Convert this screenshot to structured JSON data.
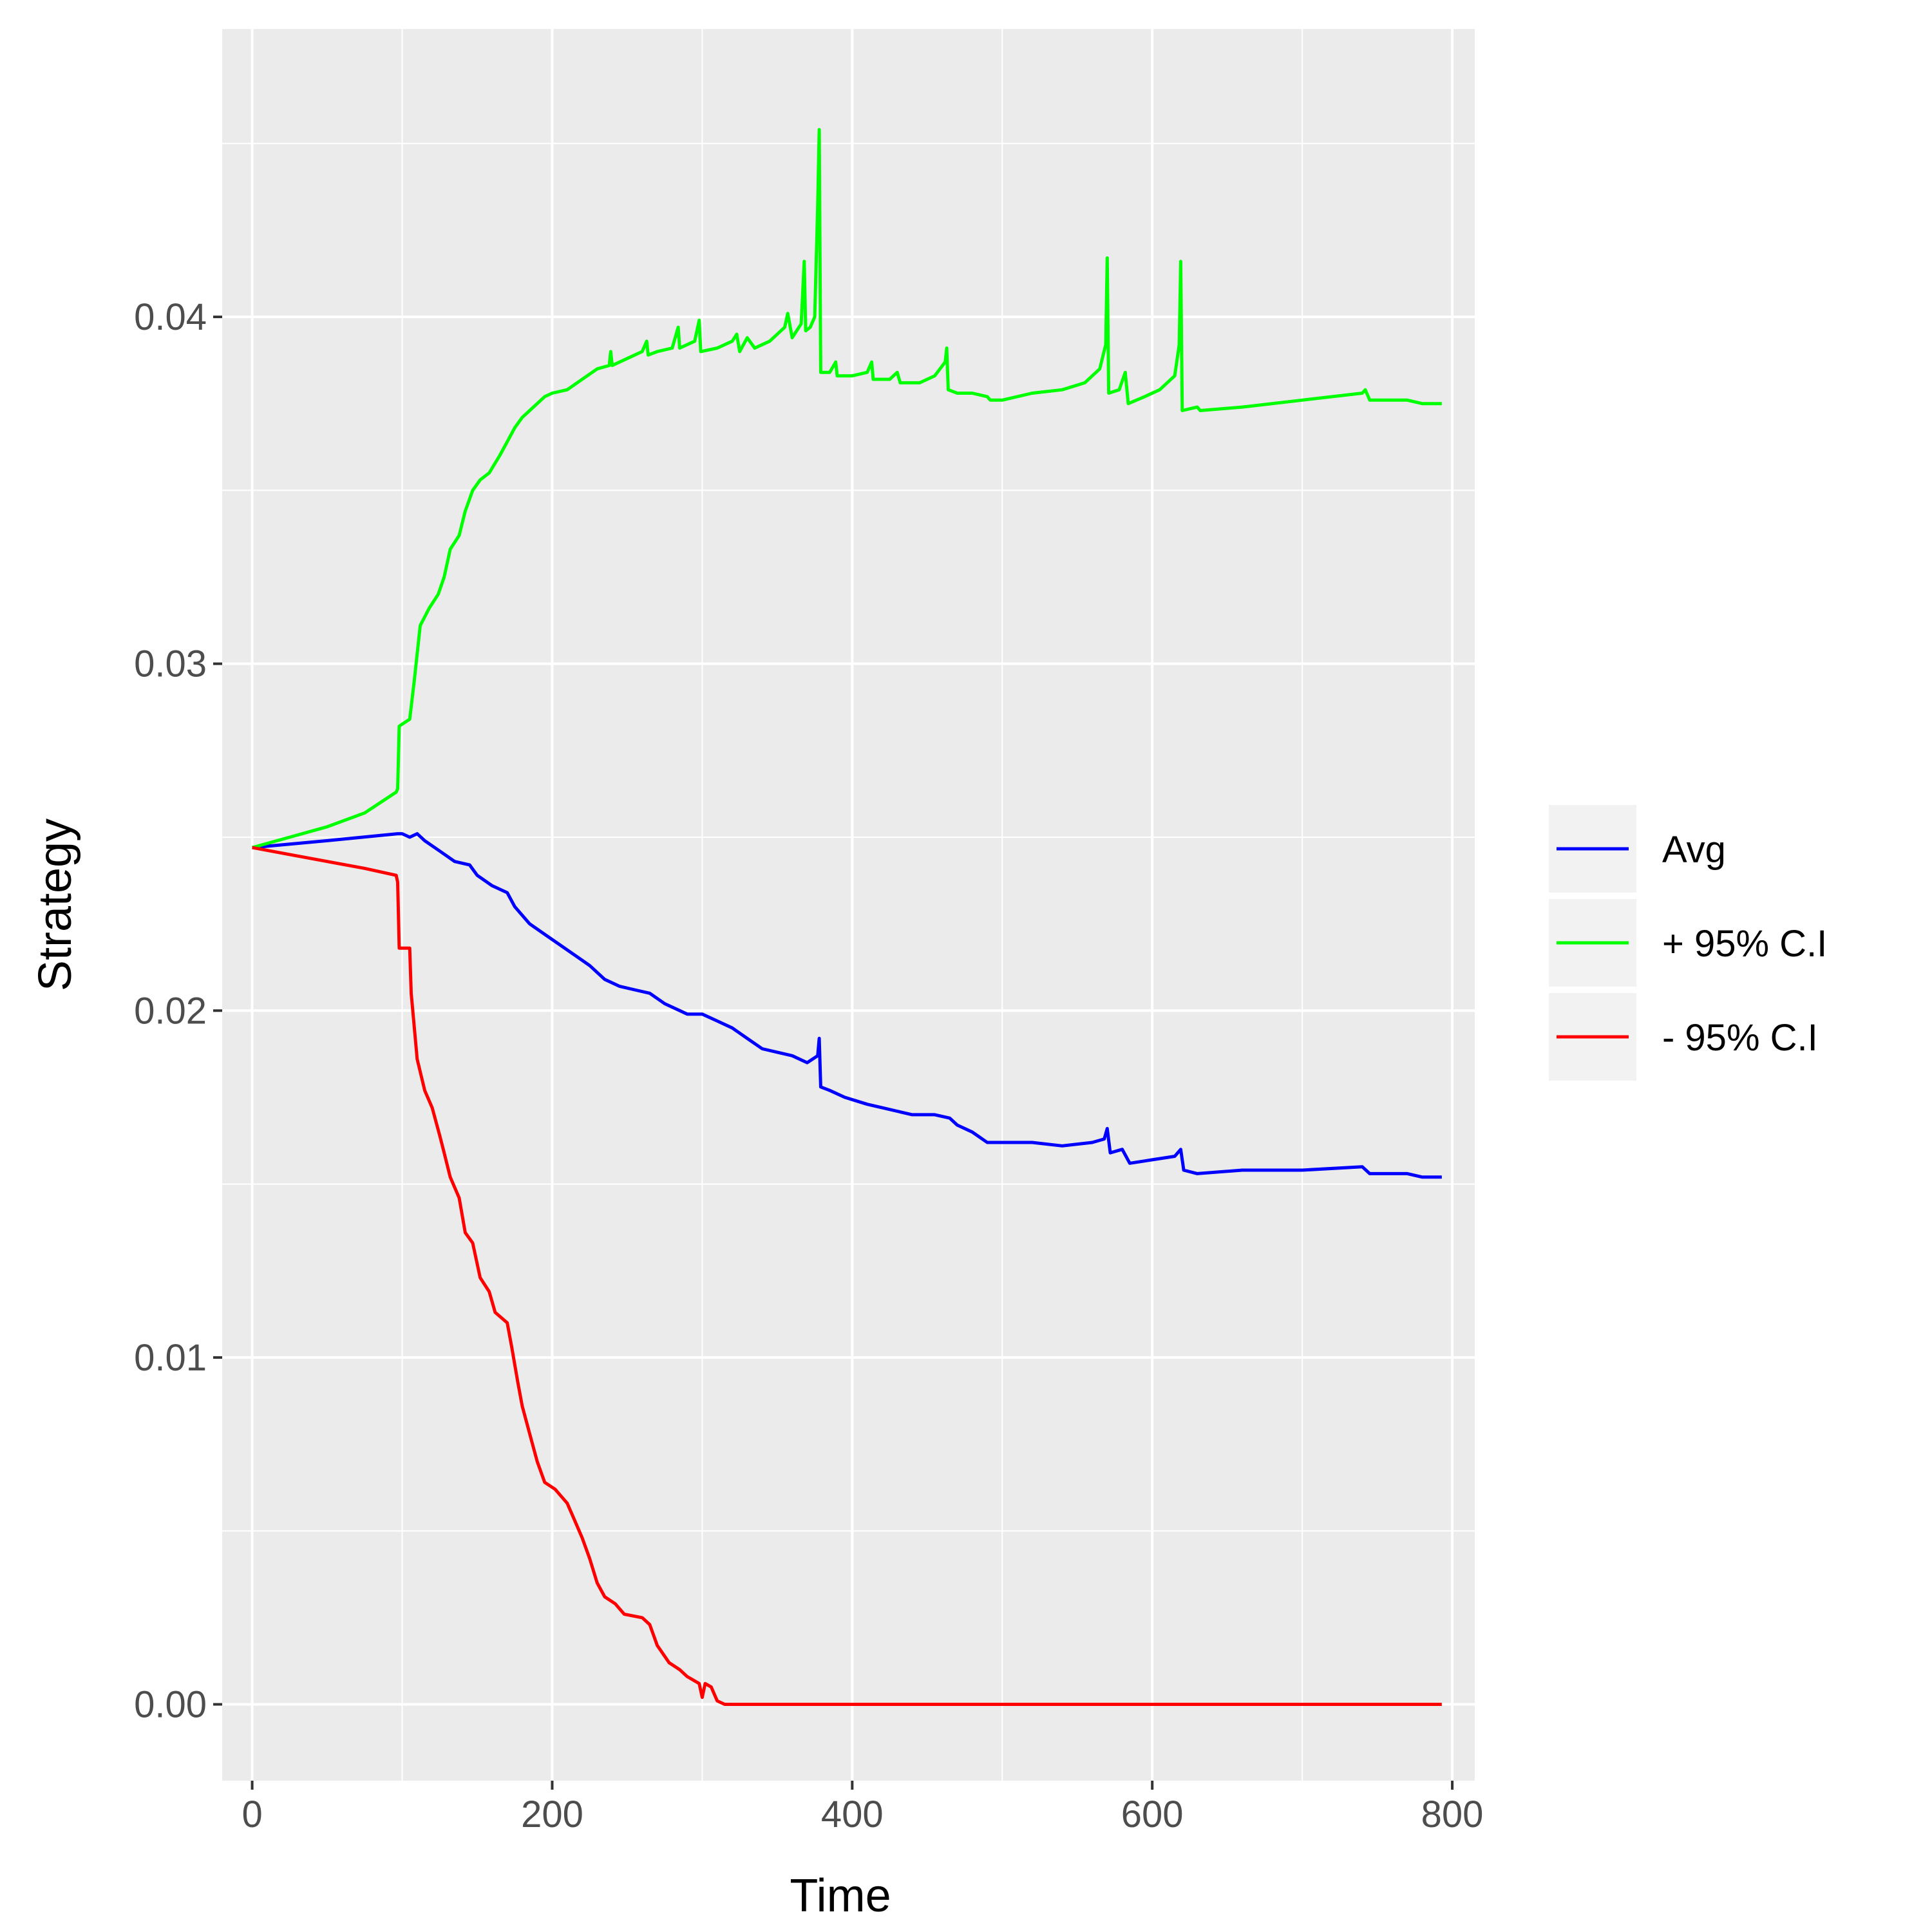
{
  "chart_data": {
    "type": "line",
    "title": "",
    "xlabel": "Time",
    "ylabel": "Strategy",
    "xlim": [
      -20,
      815
    ],
    "ylim": [
      -0.0022,
      0.0483
    ],
    "x_ticks": [
      0,
      200,
      400,
      600,
      800
    ],
    "x_tick_labels": [
      "0",
      "200",
      "400",
      "600",
      "800"
    ],
    "y_ticks": [
      0.0,
      0.01,
      0.02,
      0.03,
      0.04
    ],
    "y_tick_labels": [
      "0.00",
      "0.01",
      "0.02",
      "0.03",
      "0.04"
    ],
    "grid": true,
    "legend_position": "right",
    "background": "#ebebeb",
    "series": [
      {
        "name": "Avg",
        "color": "#0000ff",
        "points": [
          [
            0,
            0.0247
          ],
          [
            50,
            0.0249
          ],
          [
            97,
            0.0251
          ],
          [
            100,
            0.0251
          ],
          [
            105,
            0.025
          ],
          [
            110,
            0.0251
          ],
          [
            115,
            0.0249
          ],
          [
            125,
            0.0246
          ],
          [
            135,
            0.0243
          ],
          [
            145,
            0.0242
          ],
          [
            150,
            0.0239
          ],
          [
            160,
            0.0236
          ],
          [
            170,
            0.0234
          ],
          [
            175,
            0.023
          ],
          [
            185,
            0.0225
          ],
          [
            195,
            0.0222
          ],
          [
            205,
            0.0219
          ],
          [
            215,
            0.0216
          ],
          [
            225,
            0.0213
          ],
          [
            235,
            0.0209
          ],
          [
            245,
            0.0207
          ],
          [
            255,
            0.0206
          ],
          [
            265,
            0.0205
          ],
          [
            275,
            0.0202
          ],
          [
            290,
            0.0199
          ],
          [
            300,
            0.0199
          ],
          [
            310,
            0.0197
          ],
          [
            320,
            0.0195
          ],
          [
            330,
            0.0192
          ],
          [
            340,
            0.0189
          ],
          [
            350,
            0.0188
          ],
          [
            360,
            0.0187
          ],
          [
            370,
            0.0185
          ],
          [
            377,
            0.0187
          ],
          [
            378,
            0.0192
          ],
          [
            379,
            0.0178
          ],
          [
            385,
            0.0177
          ],
          [
            395,
            0.0175
          ],
          [
            410,
            0.0173
          ],
          [
            420,
            0.0172
          ],
          [
            430,
            0.0171
          ],
          [
            440,
            0.017
          ],
          [
            455,
            0.017
          ],
          [
            465,
            0.0169
          ],
          [
            470,
            0.0167
          ],
          [
            480,
            0.0165
          ],
          [
            490,
            0.0162
          ],
          [
            500,
            0.0162
          ],
          [
            520,
            0.0162
          ],
          [
            540,
            0.0161
          ],
          [
            560,
            0.0162
          ],
          [
            568,
            0.0163
          ],
          [
            570,
            0.0166
          ],
          [
            572,
            0.0159
          ],
          [
            580,
            0.016
          ],
          [
            585,
            0.0156
          ],
          [
            600,
            0.0157
          ],
          [
            615,
            0.0158
          ],
          [
            619,
            0.016
          ],
          [
            621,
            0.0154
          ],
          [
            630,
            0.0153
          ],
          [
            660,
            0.0154
          ],
          [
            700,
            0.0154
          ],
          [
            740,
            0.0155
          ],
          [
            745,
            0.0153
          ],
          [
            770,
            0.0153
          ],
          [
            780,
            0.0152
          ],
          [
            793,
            0.0152
          ]
        ]
      },
      {
        "name": "+ 95% C.I",
        "color": "#00ff00",
        "points": [
          [
            0,
            0.0247
          ],
          [
            25,
            0.025
          ],
          [
            50,
            0.0253
          ],
          [
            75,
            0.0257
          ],
          [
            96,
            0.0263
          ],
          [
            97,
            0.0264
          ],
          [
            98,
            0.0282
          ],
          [
            105,
            0.0284
          ],
          [
            108,
            0.0295
          ],
          [
            112,
            0.0311
          ],
          [
            118,
            0.0316
          ],
          [
            124,
            0.032
          ],
          [
            128,
            0.0325
          ],
          [
            132,
            0.0333
          ],
          [
            138,
            0.0337
          ],
          [
            142,
            0.0344
          ],
          [
            147,
            0.035
          ],
          [
            152,
            0.0353
          ],
          [
            158,
            0.0355
          ],
          [
            165,
            0.036
          ],
          [
            170,
            0.0364
          ],
          [
            175,
            0.0368
          ],
          [
            180,
            0.0371
          ],
          [
            185,
            0.0373
          ],
          [
            190,
            0.0375
          ],
          [
            195,
            0.0377
          ],
          [
            200,
            0.0378
          ],
          [
            210,
            0.0379
          ],
          [
            220,
            0.0382
          ],
          [
            230,
            0.0385
          ],
          [
            238,
            0.0386
          ],
          [
            239,
            0.039
          ],
          [
            240,
            0.0386
          ],
          [
            250,
            0.0388
          ],
          [
            260,
            0.039
          ],
          [
            263,
            0.0393
          ],
          [
            264,
            0.0389
          ],
          [
            270,
            0.039
          ],
          [
            280,
            0.0391
          ],
          [
            284,
            0.0397
          ],
          [
            285,
            0.0391
          ],
          [
            295,
            0.0393
          ],
          [
            298,
            0.0399
          ],
          [
            299,
            0.039
          ],
          [
            310,
            0.0391
          ],
          [
            320,
            0.0393
          ],
          [
            323,
            0.0395
          ],
          [
            325,
            0.039
          ],
          [
            330,
            0.0394
          ],
          [
            335,
            0.0391
          ],
          [
            345,
            0.0393
          ],
          [
            355,
            0.0397
          ],
          [
            357,
            0.0401
          ],
          [
            360,
            0.0394
          ],
          [
            366,
            0.0398
          ],
          [
            368,
            0.0416
          ],
          [
            369,
            0.0396
          ],
          [
            372,
            0.0397
          ],
          [
            375,
            0.04
          ],
          [
            377,
            0.0432
          ],
          [
            378,
            0.0454
          ],
          [
            379,
            0.0384
          ],
          [
            385,
            0.0384
          ],
          [
            389,
            0.0387
          ],
          [
            390,
            0.0383
          ],
          [
            400,
            0.0383
          ],
          [
            410,
            0.0384
          ],
          [
            413,
            0.0387
          ],
          [
            414,
            0.0382
          ],
          [
            425,
            0.0382
          ],
          [
            430,
            0.0384
          ],
          [
            432,
            0.0381
          ],
          [
            445,
            0.0381
          ],
          [
            455,
            0.0383
          ],
          [
            462,
            0.0387
          ],
          [
            463,
            0.0391
          ],
          [
            464,
            0.0379
          ],
          [
            470,
            0.0378
          ],
          [
            480,
            0.0378
          ],
          [
            490,
            0.0377
          ],
          [
            492,
            0.0376
          ],
          [
            500,
            0.0376
          ],
          [
            520,
            0.0378
          ],
          [
            540,
            0.0379
          ],
          [
            555,
            0.0381
          ],
          [
            565,
            0.0385
          ],
          [
            569,
            0.0392
          ],
          [
            570,
            0.0417
          ],
          [
            571,
            0.0378
          ],
          [
            578,
            0.0379
          ],
          [
            582,
            0.0384
          ],
          [
            584,
            0.0375
          ],
          [
            595,
            0.0377
          ],
          [
            605,
            0.0379
          ],
          [
            615,
            0.0383
          ],
          [
            618,
            0.0392
          ],
          [
            619,
            0.0416
          ],
          [
            620,
            0.0373
          ],
          [
            630,
            0.0374
          ],
          [
            632,
            0.0373
          ],
          [
            660,
            0.0374
          ],
          [
            700,
            0.0376
          ],
          [
            740,
            0.0378
          ],
          [
            742,
            0.0379
          ],
          [
            745,
            0.0376
          ],
          [
            770,
            0.0376
          ],
          [
            780,
            0.0375
          ],
          [
            793,
            0.0375
          ]
        ]
      },
      {
        "name": "- 95% C.I",
        "color": "#ff0000",
        "points": [
          [
            0,
            0.0247
          ],
          [
            25,
            0.0245
          ],
          [
            50,
            0.0243
          ],
          [
            75,
            0.0241
          ],
          [
            96,
            0.0239
          ],
          [
            97,
            0.0237
          ],
          [
            98,
            0.0218
          ],
          [
            105,
            0.0218
          ],
          [
            106,
            0.0205
          ],
          [
            110,
            0.0186
          ],
          [
            115,
            0.0177
          ],
          [
            120,
            0.0172
          ],
          [
            125,
            0.0164
          ],
          [
            128,
            0.0159
          ],
          [
            132,
            0.0152
          ],
          [
            138,
            0.0146
          ],
          [
            142,
            0.0136
          ],
          [
            147,
            0.0133
          ],
          [
            152,
            0.0123
          ],
          [
            158,
            0.0119
          ],
          [
            162,
            0.0113
          ],
          [
            170,
            0.011
          ],
          [
            173,
            0.0103
          ],
          [
            177,
            0.0093
          ],
          [
            180,
            0.0086
          ],
          [
            185,
            0.0078
          ],
          [
            190,
            0.007
          ],
          [
            195,
            0.0064
          ],
          [
            202,
            0.0062
          ],
          [
            210,
            0.0058
          ],
          [
            215,
            0.0053
          ],
          [
            220,
            0.0048
          ],
          [
            225,
            0.0042
          ],
          [
            230,
            0.0035
          ],
          [
            235,
            0.0031
          ],
          [
            242,
            0.0029
          ],
          [
            248,
            0.0026
          ],
          [
            260,
            0.0025
          ],
          [
            265,
            0.0023
          ],
          [
            270,
            0.0017
          ],
          [
            278,
            0.0012
          ],
          [
            285,
            0.001
          ],
          [
            290,
            0.0008
          ],
          [
            298,
            0.0006
          ],
          [
            300,
            0.0002
          ],
          [
            302,
            0.0006
          ],
          [
            306,
            0.0005
          ],
          [
            310,
            0.0001
          ],
          [
            315,
            0.0
          ],
          [
            400,
            0.0
          ],
          [
            600,
            0.0
          ],
          [
            793,
            0.0
          ]
        ]
      }
    ]
  }
}
